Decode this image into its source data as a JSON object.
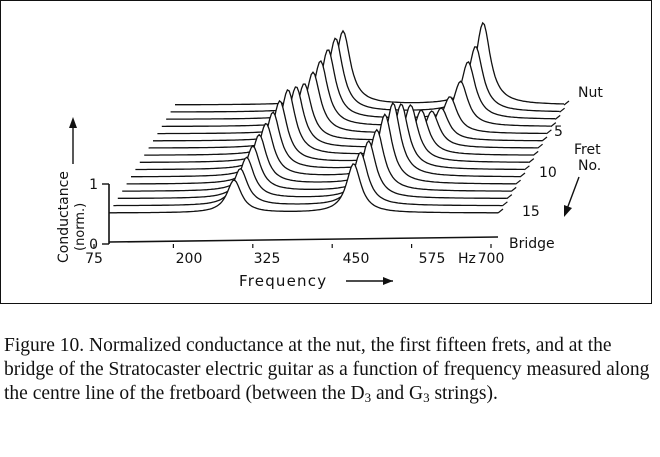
{
  "chart_data": {
    "type": "waterfall",
    "xlabel": "Frequency",
    "ylabel": "Conductance",
    "ylabel_unit": "(norm.)",
    "x_ticks": [
      75,
      200,
      325,
      450,
      575,
      700
    ],
    "x_unit": "Hz",
    "x_range": [
      75,
      700
    ],
    "y_ticks": [
      0,
      1
    ],
    "depth_axis_label": [
      "Fret",
      "No."
    ],
    "depth_ticks": [
      5,
      10,
      15
    ],
    "end_labels": {
      "nut": "Nut",
      "bridge": "Bridge"
    },
    "series": [
      {
        "name": "Nut",
        "fret": 0,
        "peaks": [
          [
            345,
            0.9
          ],
          [
            570,
            1.0
          ]
        ]
      },
      {
        "fret": 1,
        "peaks": [
          [
            340,
            0.9
          ],
          [
            565,
            0.8
          ]
        ]
      },
      {
        "fret": 2,
        "peaks": [
          [
            335,
            0.85
          ],
          [
            560,
            0.7
          ]
        ]
      },
      {
        "fret": 3,
        "peaks": [
          [
            330,
            0.8
          ],
          [
            555,
            0.55
          ]
        ]
      },
      {
        "fret": 4,
        "peaks": [
          [
            325,
            0.75
          ],
          [
            545,
            0.45
          ]
        ]
      },
      {
        "fret": 5,
        "peaks": [
          [
            318,
            0.7
          ],
          [
            538,
            0.4
          ]
        ]
      },
      {
        "fret": 6,
        "peaks": [
          [
            312,
            0.75
          ],
          [
            530,
            0.45
          ]
        ]
      },
      {
        "fret": 7,
        "peaks": [
          [
            306,
            0.8
          ],
          [
            520,
            0.55
          ]
        ]
      },
      {
        "fret": 8,
        "peaks": [
          [
            300,
            0.75
          ],
          [
            510,
            0.7
          ]
        ]
      },
      {
        "fret": 9,
        "peaks": [
          [
            296,
            0.7
          ],
          [
            502,
            0.8
          ]
        ]
      },
      {
        "fret": 10,
        "peaks": [
          [
            292,
            0.65
          ],
          [
            496,
            0.9
          ]
        ]
      },
      {
        "fret": 11,
        "peaks": [
          [
            288,
            0.6
          ],
          [
            490,
            0.85
          ]
        ]
      },
      {
        "fret": 12,
        "peaks": [
          [
            285,
            0.55
          ],
          [
            484,
            0.75
          ]
        ]
      },
      {
        "fret": 13,
        "peaks": [
          [
            282,
            0.5
          ],
          [
            478,
            0.7
          ]
        ]
      },
      {
        "fret": 14,
        "peaks": [
          [
            279,
            0.45
          ],
          [
            472,
            0.65
          ]
        ]
      },
      {
        "fret": 15,
        "peaks": [
          [
            276,
            0.4
          ],
          [
            468,
            0.6
          ]
        ]
      },
      {
        "name": "Bridge",
        "peaks": []
      }
    ]
  },
  "caption": {
    "parts": [
      "Figure 10. Normalized conductance at the nut, the first fifteen frets, and at the bridge of the Stratocaster electric guitar as a function of frequency measured along the centre line of the fretboard (between the D",
      "3",
      " and G",
      "3",
      " strings)."
    ]
  }
}
